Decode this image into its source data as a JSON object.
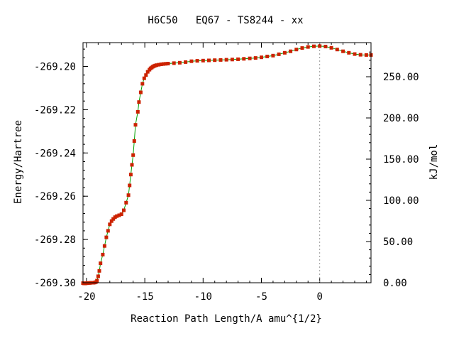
{
  "chart_data": {
    "type": "line",
    "title": "H6C50   EQ67 - TS8244 - xx",
    "xlabel": "Reaction Path Length/A amu^{1/2}",
    "ylabel": "Energy/Hartree",
    "y2label": "kJ/mol",
    "xlim": [
      -20.3,
      4.4
    ],
    "ylim": [
      -269.3,
      -269.189
    ],
    "y2lim": [
      0.0,
      291.4
    ],
    "x_ticks": [
      -20,
      -15,
      -10,
      -5,
      0
    ],
    "x_tick_labels": [
      "-20",
      "-15",
      "-10",
      "-5",
      "0"
    ],
    "y_ticks": [
      -269.3,
      -269.28,
      -269.26,
      -269.24,
      -269.22,
      -269.2
    ],
    "y_tick_labels": [
      "-269.30",
      "-269.28",
      "-269.26",
      "-269.24",
      "-269.22",
      "-269.20"
    ],
    "y2_ticks": [
      0,
      50,
      100,
      150,
      200,
      250
    ],
    "y2_tick_labels": [
      "0.00",
      "50.00",
      "100.00",
      "150.00",
      "200.00",
      "250.00"
    ],
    "ts_marker_x": 0,
    "grid": false,
    "line_color": "#00a000",
    "marker_color": "#cc2200",
    "series": [
      {
        "x": [
          -20.3,
          -20.2,
          -20.1,
          -20.0,
          -19.9,
          -19.8,
          -19.7,
          -19.6,
          -19.5,
          -19.4,
          -19.3,
          -19.2,
          -19.1,
          -19.0,
          -18.9,
          -18.8,
          -18.6,
          -18.45,
          -18.3,
          -18.15,
          -18.0,
          -17.85,
          -17.7,
          -17.55,
          -17.4,
          -17.2,
          -17.0,
          -16.8,
          -16.6,
          -16.4,
          -16.3,
          -16.2,
          -16.1,
          -16.0,
          -15.9,
          -15.8,
          -15.6,
          -15.5,
          -15.35,
          -15.2,
          -15.05,
          -14.9,
          -14.75,
          -14.6,
          -14.5,
          -14.4,
          -14.3,
          -14.2,
          -14.1,
          -14.0,
          -13.8,
          -13.6,
          -13.4,
          -13.2,
          -13.0,
          -12.5,
          -12.0,
          -11.5,
          -11.0,
          -10.5,
          -10.0,
          -9.5,
          -9.0,
          -8.5,
          -8.0,
          -7.5,
          -7.0,
          -6.5,
          -6.0,
          -5.5,
          -5.0,
          -4.5,
          -4.0,
          -3.5,
          -3.0,
          -2.5,
          -2.0,
          -1.5,
          -1.0,
          -0.5,
          0.0,
          0.5,
          1.0,
          1.5,
          2.0,
          2.5,
          3.0,
          3.5,
          4.0,
          4.4
        ],
        "y": [
          -269.3002,
          -269.3003,
          -269.3003,
          -269.3002,
          -269.3002,
          -269.3001,
          -269.3001,
          -269.3,
          -269.3,
          -269.3,
          -269.2999,
          -269.2997,
          -269.299,
          -269.297,
          -269.2945,
          -269.291,
          -269.287,
          -269.283,
          -269.279,
          -269.276,
          -269.273,
          -269.2715,
          -269.2705,
          -269.2697,
          -269.2692,
          -269.2688,
          -269.2683,
          -269.2665,
          -269.263,
          -269.2595,
          -269.255,
          -269.25,
          -269.2455,
          -269.241,
          -269.2345,
          -269.227,
          -269.221,
          -269.2165,
          -269.212,
          -269.208,
          -269.2055,
          -269.204,
          -269.2025,
          -269.2015,
          -269.2009,
          -269.2005,
          -269.2001,
          -269.1998,
          -269.1996,
          -269.1994,
          -269.1992,
          -269.199,
          -269.1989,
          -269.1988,
          -269.1987,
          -269.1985,
          -269.1983,
          -269.198,
          -269.1976,
          -269.1974,
          -269.1973,
          -269.1972,
          -269.1971,
          -269.197,
          -269.1969,
          -269.1968,
          -269.1967,
          -269.1965,
          -269.1963,
          -269.1961,
          -269.1958,
          -269.1954,
          -269.195,
          -269.1944,
          -269.1937,
          -269.193,
          -269.1922,
          -269.1915,
          -269.191,
          -269.1907,
          -269.1906,
          -269.1908,
          -269.1914,
          -269.1922,
          -269.193,
          -269.1937,
          -269.1943,
          -269.1946,
          -269.1947,
          -269.1947
        ]
      }
    ]
  }
}
